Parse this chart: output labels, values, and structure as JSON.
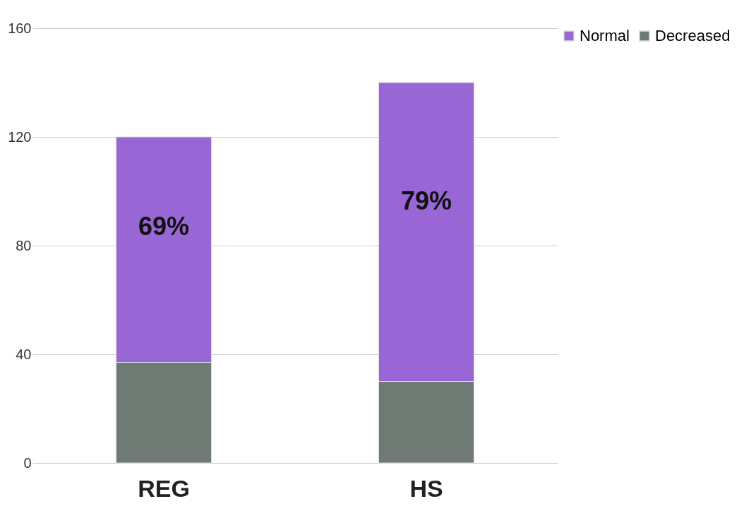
{
  "chart_data": {
    "type": "bar",
    "stacked": true,
    "categories": [
      "REG",
      "HS"
    ],
    "series": [
      {
        "name": "Decreased",
        "color": "#6f7a74",
        "values": [
          37,
          30
        ]
      },
      {
        "name": "Normal",
        "color": "#9966d6",
        "values": [
          83,
          110
        ]
      }
    ],
    "ylim": [
      0,
      160
    ],
    "yticks": [
      0,
      40,
      80,
      120,
      160
    ],
    "grid": "y",
    "legend": "right",
    "annotations": [
      "69%",
      "79%"
    ]
  }
}
